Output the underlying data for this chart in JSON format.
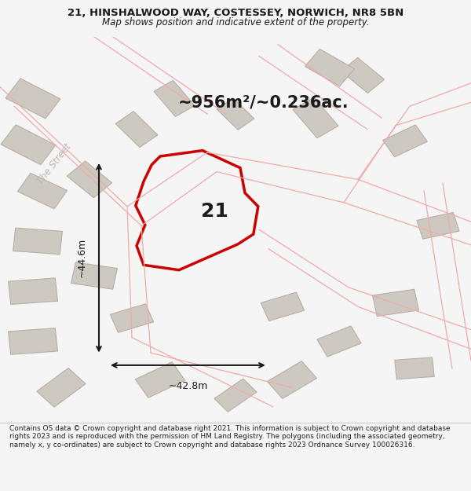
{
  "title_line1": "21, HINSHALWOOD WAY, COSTESSEY, NORWICH, NR8 5BN",
  "title_line2": "Map shows position and indicative extent of the property.",
  "area_text": "~956m²/~0.236ac.",
  "label_21": "21",
  "dim_width": "~42.8m",
  "dim_height": "~44.6m",
  "street_label": "The Street",
  "footer": "Contains OS data © Crown copyright and database right 2021. This information is subject to Crown copyright and database rights 2023 and is reproduced with the permission of HM Land Registry. The polygons (including the associated geometry, namely x, y co-ordinates) are subject to Crown copyright and database rights 2023 Ordnance Survey 100026316.",
  "bg_color": "#f5f5f5",
  "map_bg": "#ede8e2",
  "footer_bg": "#ffffff",
  "road_color": "#f0aaaa",
  "building_fill": "#cdc8c0",
  "building_edge": "#b8b0a8",
  "main_poly_color": "#cc0000",
  "dim_color": "#1a1a1a",
  "text_color": "#1a1a1a",
  "street_color": "#c0b8b0"
}
